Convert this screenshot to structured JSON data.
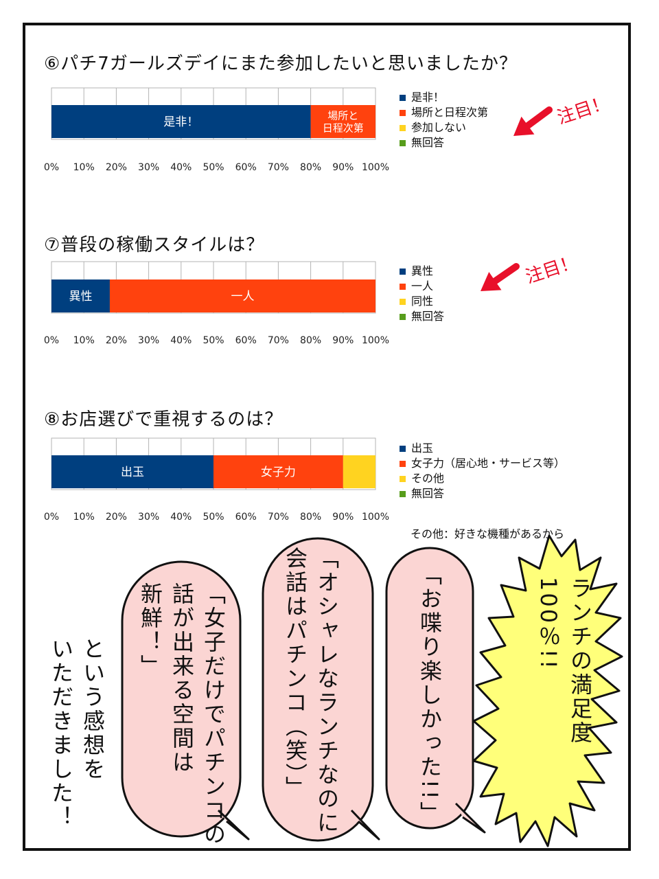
{
  "colors": {
    "blue": "#003f7f",
    "red": "#ff420e",
    "yellow": "#ffd320",
    "green": "#579d1c",
    "bubble": "#fbd5d3",
    "burst": "#ffff7a",
    "note": "#e8102a"
  },
  "axis_ticks": [
    "0%",
    "10%",
    "20%",
    "30%",
    "40%",
    "50%",
    "60%",
    "70%",
    "80%",
    "90%",
    "100%"
  ],
  "chart_data": [
    {
      "type": "bar",
      "title": "⑥パチ7ガールズデイにまた参加したいと思いましたか？",
      "xlim": [
        0,
        100
      ],
      "series": [
        {
          "name": "是非！",
          "value": 80,
          "label": "是非！"
        },
        {
          "name": "場所と日程次第",
          "value": 20,
          "label": "場所と\n日程次第"
        },
        {
          "name": "参加しない",
          "value": 0,
          "label": ""
        },
        {
          "name": "無回答",
          "value": 0,
          "label": ""
        }
      ],
      "annotation": "注目！"
    },
    {
      "type": "bar",
      "title": "⑦普段の稼働スタイルは？",
      "xlim": [
        0,
        100
      ],
      "series": [
        {
          "name": "異性",
          "value": 18,
          "label": "異性"
        },
        {
          "name": "一人",
          "value": 82,
          "label": "一人"
        },
        {
          "name": "同性",
          "value": 0,
          "label": ""
        },
        {
          "name": "無回答",
          "value": 0,
          "label": ""
        }
      ],
      "annotation": "注目！"
    },
    {
      "type": "bar",
      "title": "⑧お店選びで重視するのは？",
      "xlim": [
        0,
        100
      ],
      "series": [
        {
          "name": "出玉",
          "value": 50,
          "label": "出玉"
        },
        {
          "name": "女子力（居心地・サービス等）",
          "value": 40,
          "label": "女子力"
        },
        {
          "name": "その他",
          "value": 10,
          "label": ""
        },
        {
          "name": "無回答",
          "value": 0,
          "label": ""
        }
      ],
      "footnote": "その他：好きな機種があるから"
    }
  ],
  "bubbles": [
    {
      "text": "「女子だけでパチンコの\n話が出来る空間は\n新鮮！」"
    },
    {
      "text": "「オシャレなランチなのに\n会話はパチンコ（笑）」"
    },
    {
      "text": "「お喋り楽しかった!!」"
    }
  ],
  "burst": {
    "text": "ランチの満足度\n100％!!"
  },
  "closing": {
    "text": "という感想を\nいただきました！"
  }
}
